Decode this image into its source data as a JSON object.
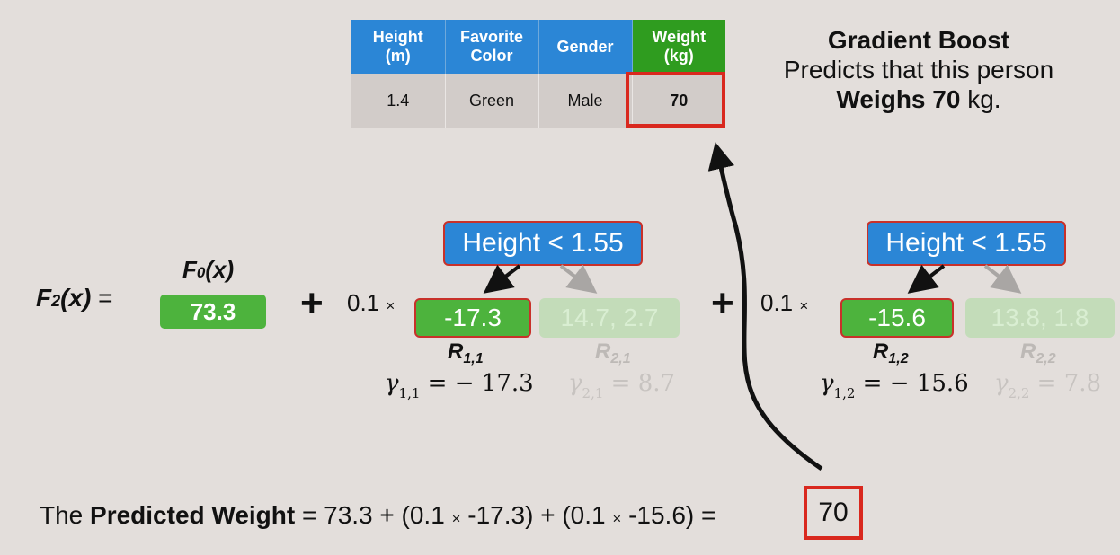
{
  "table": {
    "headers": [
      {
        "line1": "Height",
        "line2": "(m)"
      },
      {
        "line1": "Favorite",
        "line2": "Color"
      },
      {
        "line1": "Gender",
        "line2": ""
      },
      {
        "line1": "Weight",
        "line2": "(kg)"
      }
    ],
    "row": [
      "1.4",
      "Green",
      "Male",
      "70"
    ]
  },
  "summary": {
    "title": "Gradient Boost",
    "line2": "Predicts that this person",
    "line3_bold": "Weighs 70",
    "line3_rest": " kg."
  },
  "equation": {
    "f2": "F",
    "f2_sub": "2",
    "f2_arg": "(x)",
    "equals": " =",
    "f0": "F",
    "f0_sub": "0",
    "f0_arg": "(x)",
    "f0_value": "73.3",
    "plus": "+",
    "learning_rate": "0.1",
    "times": "×"
  },
  "trees": [
    {
      "root": "Height < 1.55",
      "left_leaf": "-17.3",
      "right_leaf": "14.7, 2.7",
      "left_region": {
        "name": "R",
        "sub": "1,1"
      },
      "right_region": {
        "name": "R",
        "sub": "2,1"
      },
      "left_gamma": {
        "sub": "1,1",
        "value": "= − 17.3"
      },
      "right_gamma": {
        "sub": "2,1",
        "value": "= 8.7"
      }
    },
    {
      "root": "Height < 1.55",
      "left_leaf": "-15.6",
      "right_leaf": "13.8, 1.8",
      "left_region": {
        "name": "R",
        "sub": "1,2"
      },
      "right_region": {
        "name": "R",
        "sub": "2,2"
      },
      "left_gamma": {
        "sub": "1,2",
        "value": "= − 15.6"
      },
      "right_gamma": {
        "sub": "2,2",
        "value": "= 7.8"
      }
    }
  ],
  "prediction": {
    "prefix": "The ",
    "bold": "Predicted Weight",
    "part1": " = 73.3 + (0.1 ",
    "times": "×",
    "part2": " -17.3) + (0.1 ",
    "part3": " -15.6) = ",
    "result": "70"
  },
  "colors": {
    "blue": "#2b86d6",
    "green": "#4db33d",
    "faded_green": "#c3dcb9",
    "red": "#d9281e",
    "background": "#e3dedb"
  },
  "icons": [
    "arrow-icon",
    "curved-arrow-icon"
  ]
}
